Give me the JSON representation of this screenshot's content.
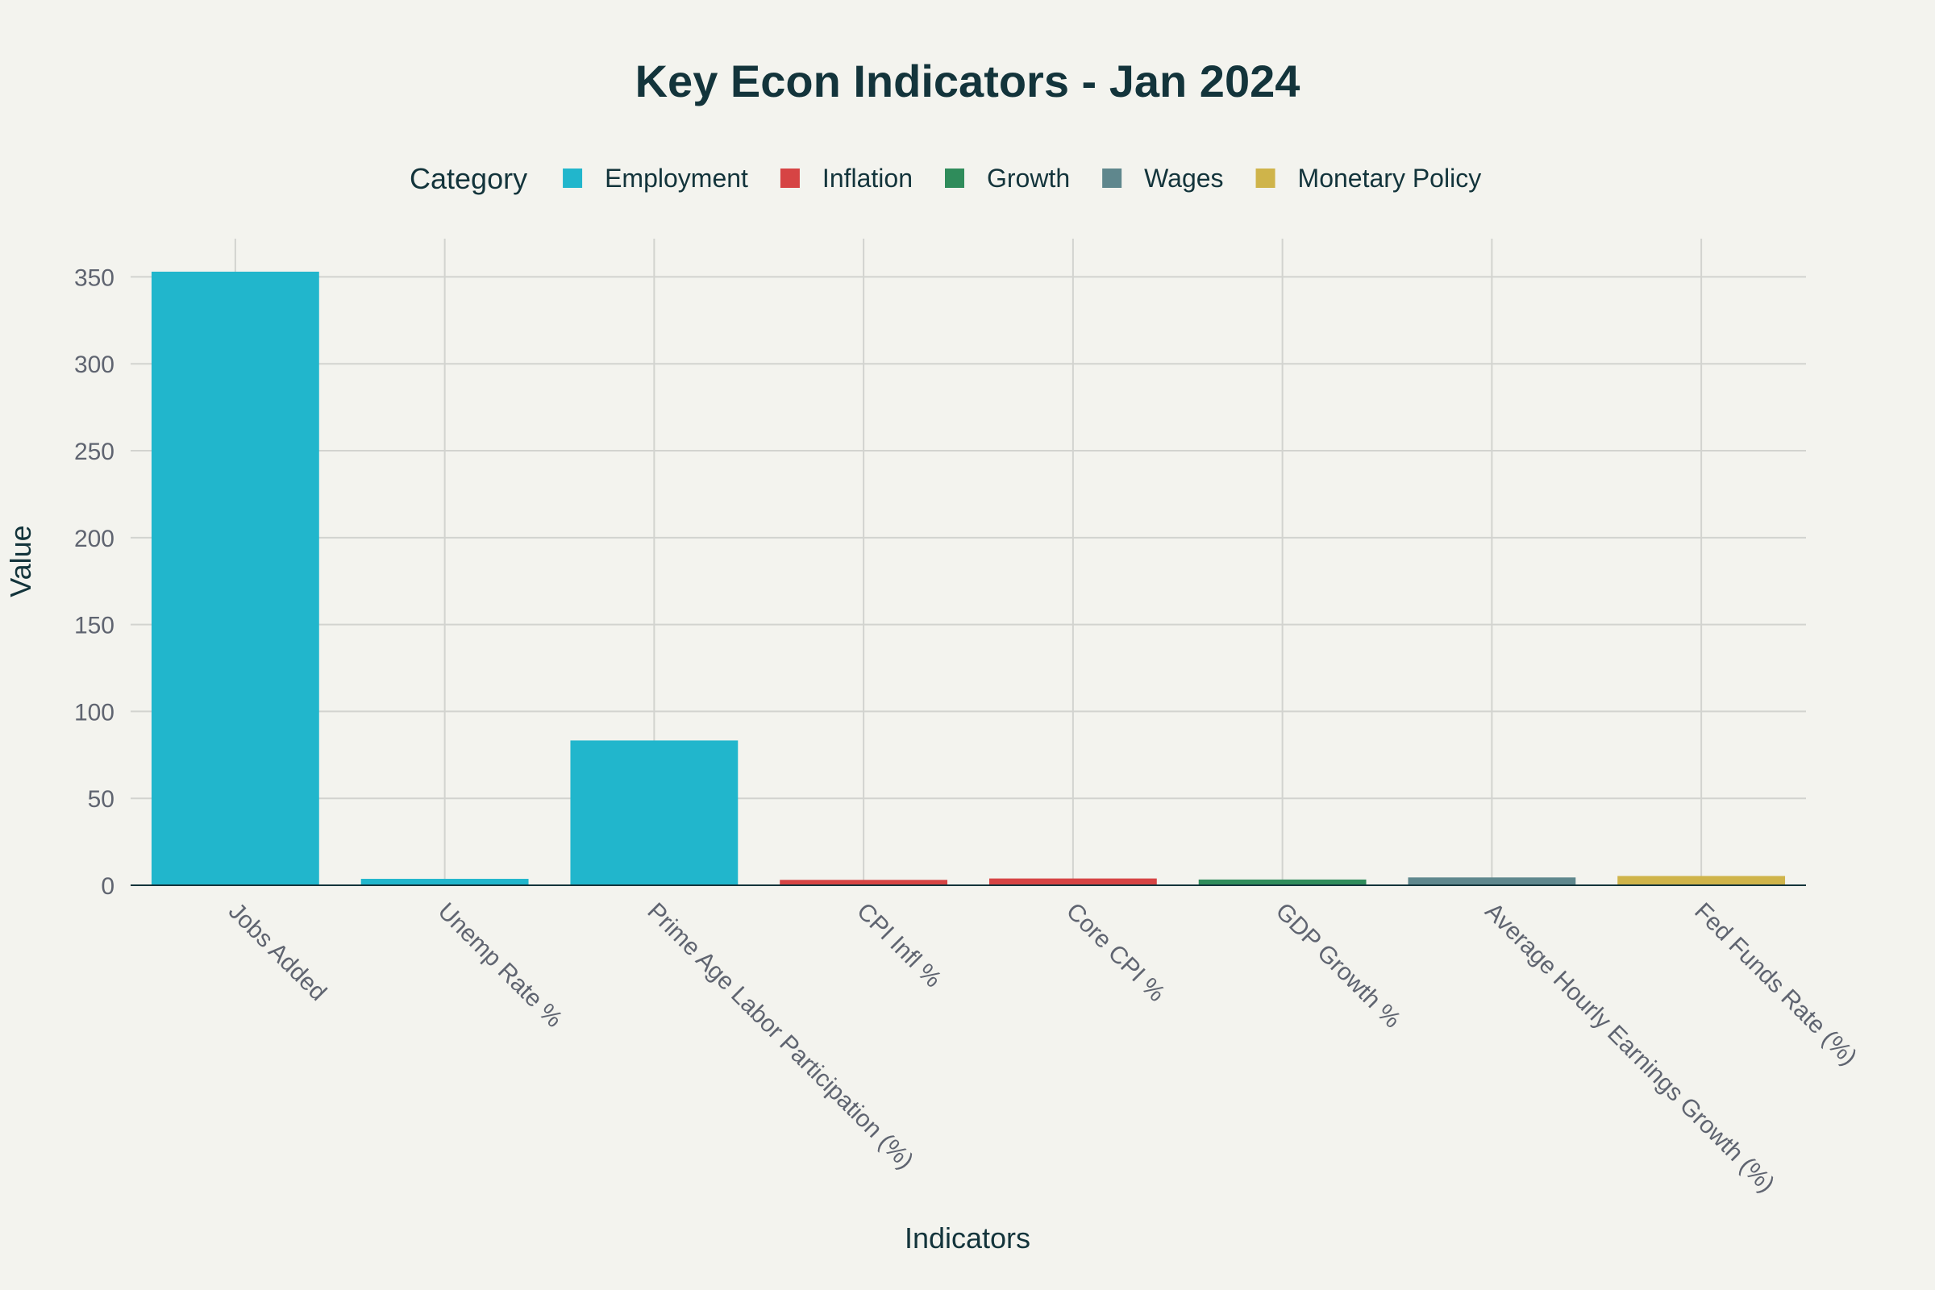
{
  "chart_data": {
    "type": "bar",
    "title": "Key Econ Indicators - Jan 2024",
    "xlabel": "Indicators",
    "ylabel": "Value",
    "ylim": [
      0,
      372
    ],
    "yticks": [
      0,
      50,
      100,
      150,
      200,
      250,
      300,
      350
    ],
    "grid": true,
    "legend_title": "Category",
    "legend_position": "top",
    "categories": [
      "Jobs Added",
      "Unemp Rate %",
      "Prime Age Labor Participation (%)",
      "CPI Infl %",
      "Core CPI %",
      "GDP Growth %",
      "Average Hourly Earnings Growth (%)",
      "Fed Funds Rate (%)"
    ],
    "values": [
      353,
      3.7,
      83.3,
      3.1,
      3.9,
      3.3,
      4.5,
      5.33
    ],
    "bar_groups": [
      "Employment",
      "Employment",
      "Employment",
      "Inflation",
      "Inflation",
      "Growth",
      "Wages",
      "Monetary Policy"
    ],
    "series": [
      {
        "name": "Employment",
        "color": "#21B6CC"
      },
      {
        "name": "Inflation",
        "color": "#D64444"
      },
      {
        "name": "Growth",
        "color": "#2F8C5B"
      },
      {
        "name": "Wages",
        "color": "#5F878D"
      },
      {
        "name": "Monetary Policy",
        "color": "#CFB44A"
      }
    ]
  }
}
